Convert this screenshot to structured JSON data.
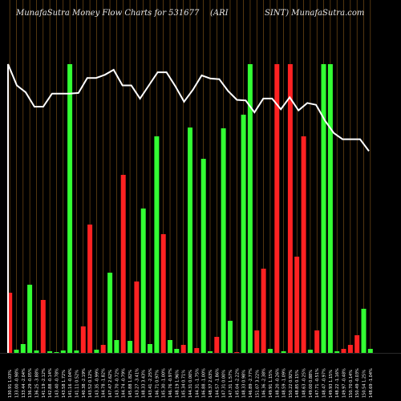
{
  "title": {
    "left": "MunafaSutra  Money Flow  Charts for 531677",
    "middle": "(ARI",
    "right": "SINT)  MunafaSutra.com"
  },
  "chart_data": {
    "type": "bar",
    "categories": [
      "130.91 1.03%",
      "133.00 -0.98%",
      "133.44 -2.04%",
      "136.29 -0.05%",
      "136.25 -3.88%",
      "141.19 -2.12%",
      "142.88 -0.14%",
      "143.40 -0.78%",
      "143.58 1.72%",
      "141.16 -0.04%",
      "141.11 0.52%",
      "140.38 -2.19%",
      "143.52 0.12%",
      "143.35 -0.99%",
      "144.78 -1.82%",
      "147.47 2.62%",
      "143.70 -0.72%",
      "144.74 -0.79%",
      "145.88 1.82%",
      "143.27 -3.41%",
      "148.33 3.43%",
      "143.41 -2.25%",
      "146.71 0.97%",
      "145.30 -1.00%",
      "146.76 -0.97%",
      "148.19 1.96%",
      "145.34 0.71%",
      "144.31 0.00%",
      "144.31 -1.75%",
      "146.88 -1.00%",
      "148.37 2.63%",
      "144.57 -1.86%",
      "147.31 0.00%",
      "147.31 1.57%",
      "145.04 -2.22%",
      "148.33 0.98%",
      "146.89 -2.77%",
      "151.07 3.22%",
      "146.36 -2.38%",
      "149.91 1.15%",
      "148.20 -0.26%",
      "148.59 -1.09%",
      "150.22 0.92%",
      "148.85 0.15%",
      "148.63 -0.25%",
      "149.00 0.88%",
      "147.71 -0.51%",
      "148.47 -0.97%",
      "149.93 1.15%",
      "148.22 -1.16%",
      "149.97 -0.48%",
      "150.70 0.14%",
      "150.49 -0.03%",
      "150.54 1.25%",
      "148.69 -1.04%"
    ],
    "values": [
      75,
      4,
      11,
      85,
      3,
      66,
      2,
      1,
      3,
      360,
      3,
      33,
      160,
      4,
      10,
      100,
      16,
      222,
      15,
      89,
      180,
      11,
      270,
      148,
      16,
      5,
      10,
      281,
      6,
      242,
      2,
      20,
      280,
      40,
      1,
      297,
      360,
      28,
      105,
      5,
      360,
      2,
      360,
      120,
      270,
      4,
      28,
      360,
      360,
      2,
      5,
      10,
      22,
      55,
      5
    ],
    "colors": [
      "red",
      "green",
      "green",
      "green",
      "green",
      "red",
      "green",
      "green",
      "green",
      "green",
      "green",
      "red",
      "red",
      "green",
      "red",
      "green",
      "green",
      "red",
      "green",
      "red",
      "green",
      "green",
      "green",
      "red",
      "green",
      "green",
      "red",
      "green",
      "red",
      "green",
      "green",
      "red",
      "green",
      "green",
      "red",
      "green",
      "green",
      "red",
      "red",
      "green",
      "red",
      "green",
      "red",
      "red",
      "red",
      "green",
      "red",
      "green",
      "green",
      "green",
      "red",
      "red",
      "red",
      "green",
      "green"
    ],
    "price_line": [
      50,
      84,
      95,
      118,
      118,
      97,
      97,
      97,
      96,
      72,
      72,
      67,
      59,
      84,
      84,
      105,
      84,
      63,
      63,
      85,
      110,
      91,
      68,
      73,
      74,
      93,
      107,
      108,
      127,
      105,
      105,
      122,
      103,
      124,
      112,
      115,
      140,
      160,
      170,
      170,
      170,
      189
    ],
    "series_colors": {
      "green": "#33ff33",
      "red": "#ff2222",
      "line": "#ffffff",
      "grid": "#8a5a1a"
    },
    "xlabel": "",
    "ylabel": "",
    "grid": true
  }
}
